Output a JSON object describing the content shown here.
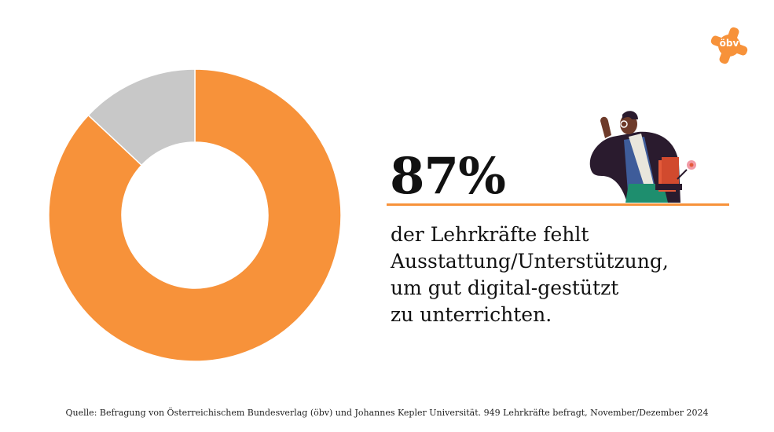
{
  "logo": {
    "text": "öbv",
    "color": "#F7923A"
  },
  "highlight": {
    "value": "87%",
    "lines": [
      "der Lehrkräfte fehlt",
      "Ausstattung/Unterstützung,",
      "um gut digital-gestützt",
      "zu unterrichten."
    ]
  },
  "source": "Quelle: Befragung von Österreichischem Bundesverlag (öbv) und Johannes Kepler Universität. 949 Lehrkräfte befragt, November/Dezember 2024",
  "illustration": {
    "icon": "teacher-with-books-icon"
  },
  "chart_data": {
    "type": "pie",
    "donut": true,
    "slices": [
      {
        "value": 87,
        "color": "#F7923A"
      },
      {
        "value": 13,
        "color": "#C8C8C8"
      }
    ],
    "start_angle_deg": 0,
    "direction": "clockwise"
  }
}
